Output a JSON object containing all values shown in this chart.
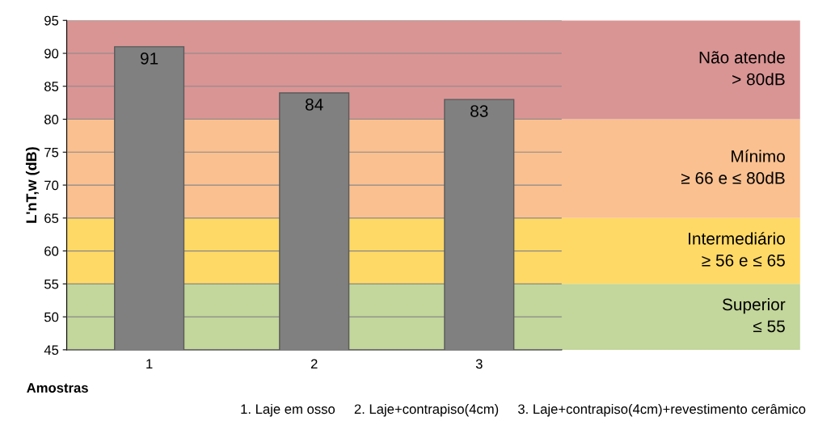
{
  "chart_data": {
    "type": "bar",
    "categories": [
      "1",
      "2",
      "3"
    ],
    "values": [
      91,
      84,
      83
    ],
    "color": "#808080",
    "data_labels": true,
    "ylabel": "L'nT,w (dB)",
    "xlabel": "Amostras",
    "ylim": [
      45,
      95
    ],
    "yticks": [
      45,
      50,
      55,
      60,
      65,
      70,
      75,
      80,
      85,
      90,
      95
    ],
    "grid": "y",
    "bands": [
      {
        "axis": "y",
        "from": 45,
        "to": 55,
        "label": "Superior\n≤ 55",
        "color": "#c3d69b"
      },
      {
        "axis": "y",
        "from": 55,
        "to": 65,
        "label": "Intermediário\n≥ 56 e ≤ 65",
        "color": "#ffd966"
      },
      {
        "axis": "y",
        "from": 65,
        "to": 80,
        "label": "Mínimo\n≥ 66 e ≤ 80dB",
        "color": "#fac090"
      },
      {
        "axis": "y",
        "from": 80,
        "to": 95,
        "label": "Não atende\n> 80dB",
        "color": "#d99594"
      }
    ],
    "annotations": [
      "1. Laje em osso     2. Laje+contrapiso(4cm)     3. Laje+contrapiso(4cm)+revestimento cerâmico"
    ]
  }
}
